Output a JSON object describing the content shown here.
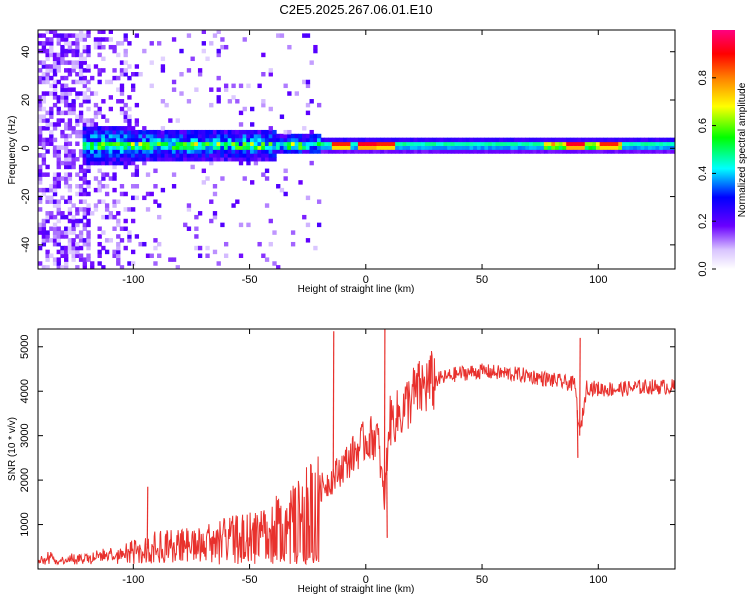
{
  "title": "C2E5.2025.267.06.01.E10",
  "chart_data": [
    {
      "type": "heatmap",
      "xlabel": "Height of straight line (km)",
      "ylabel": "Frequency (Hz)",
      "xlim": [
        -141,
        133
      ],
      "ylim": [
        -50,
        49
      ],
      "xticks": [
        "-100",
        "-50",
        "0",
        "50",
        "100"
      ],
      "yticks": [
        "-40",
        "-20",
        "0",
        "20",
        "40"
      ],
      "colorbar": {
        "label": "Normalized spectral amplitude",
        "range": [
          0,
          1
        ],
        "ticks": [
          "0.0",
          "0.2",
          "0.4",
          "0.6",
          "0.8"
        ]
      },
      "description_series": {
        "center_frequency_hz": 1,
        "band_halfwidth_hz": [
          {
            "x": -120,
            "halfwidth": 8
          },
          {
            "x": -60,
            "halfwidth": 6
          },
          {
            "x": -20,
            "halfwidth": 4
          },
          {
            "x": 0,
            "halfwidth": 3
          },
          {
            "x": 133,
            "halfwidth": 3
          }
        ],
        "peak_amplitude_regions": [
          {
            "x": -12,
            "amplitude": 0.9
          },
          {
            "x": -1,
            "amplitude": 0.95
          },
          {
            "x": 8,
            "amplitude": 0.9
          },
          {
            "x": 90,
            "amplitude": 0.95
          },
          {
            "x": 103,
            "amplitude": 0.9
          }
        ]
      }
    },
    {
      "type": "line",
      "xlabel": "Height of straight line (km)",
      "ylabel": "SNR (10 * v/v)",
      "xlim": [
        -141,
        133
      ],
      "ylim": [
        0,
        5400
      ],
      "xticks": [
        "-100",
        "-50",
        "0",
        "50",
        "100"
      ],
      "yticks": [
        "1000",
        "2000",
        "3000",
        "4000",
        "5000"
      ],
      "color": "#e8312d",
      "series": [
        {
          "name": "SNR",
          "x": [
            -141,
            -130,
            -120,
            -110,
            -100,
            -90,
            -80,
            -70,
            -60,
            -50,
            -40,
            -30,
            -20,
            -15,
            -10,
            -5,
            0,
            5,
            8,
            10,
            15,
            20,
            25,
            30,
            40,
            50,
            60,
            70,
            80,
            90,
            92,
            95,
            100,
            110,
            120,
            133
          ],
          "y": [
            150,
            200,
            250,
            350,
            450,
            600,
            650,
            700,
            800,
            900,
            1100,
            1400,
            1800,
            2000,
            2300,
            2600,
            2900,
            3000,
            1500,
            3300,
            3500,
            3900,
            4100,
            4250,
            4400,
            4450,
            4400,
            4350,
            4250,
            4150,
            3000,
            4100,
            4050,
            4050,
            4100,
            4100
          ],
          "spikes": [
            {
              "x": -94,
              "y": 1850
            },
            {
              "x": -14,
              "y": 5350
            },
            {
              "x": 8,
              "y": 5400
            },
            {
              "x": 9,
              "y": 700
            },
            {
              "x": 92,
              "y": 5200
            },
            {
              "x": 91,
              "y": 2500
            }
          ]
        }
      ]
    }
  ]
}
